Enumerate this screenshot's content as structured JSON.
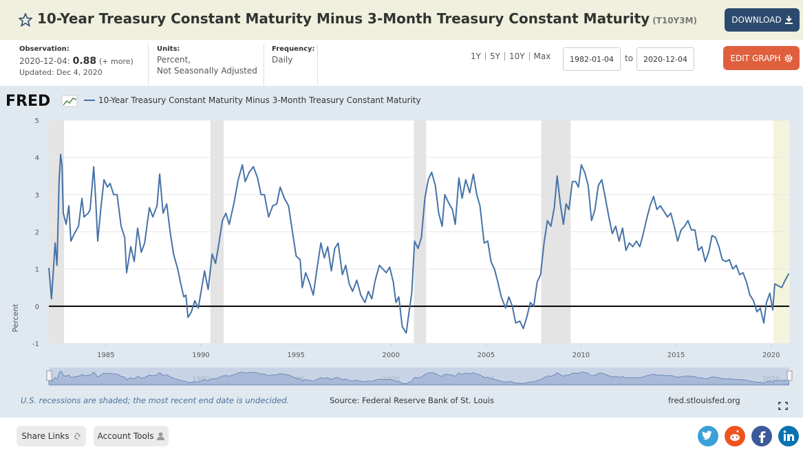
{
  "header": {
    "title": "10-Year Treasury Constant Maturity Minus 3-Month Treasury Constant Maturity",
    "series_id": "(T10Y3M)",
    "download": "DOWNLOAD"
  },
  "info": {
    "observation_label": "Observation:",
    "observation_date": "2020-12-04:",
    "observation_value": "0.88",
    "more": "(+ more)",
    "updated": "Updated: Dec 4, 2020",
    "units_label": "Units:",
    "units": [
      "Percent,",
      "Not Seasonally Adjusted"
    ],
    "frequency_label": "Frequency:",
    "frequency": "Daily"
  },
  "controls": {
    "ranges": [
      "1Y",
      "5Y",
      "10Y",
      "Max"
    ],
    "start": "1982-01-04",
    "to": "to",
    "end": "2020-12-04",
    "edit": "EDIT GRAPH"
  },
  "chart_data": {
    "type": "line",
    "logo": "FRED",
    "ylabel": "Percent",
    "x": [
      1982.0,
      1982.14,
      1982.33,
      1982.43,
      1982.54,
      1982.62,
      1982.69,
      1982.76,
      1982.91,
      1983.05,
      1983.16,
      1983.34,
      1983.56,
      1983.74,
      1983.85,
      1984.07,
      1984.17,
      1984.36,
      1984.46,
      1984.57,
      1984.75,
      1984.9,
      1985.08,
      1985.22,
      1985.41,
      1985.59,
      1985.8,
      1985.99,
      1986.09,
      1986.31,
      1986.49,
      1986.67,
      1986.86,
      1987.04,
      1987.29,
      1987.47,
      1987.69,
      1987.83,
      1988.01,
      1988.2,
      1988.38,
      1988.56,
      1988.78,
      1988.92,
      1989.1,
      1989.21,
      1989.32,
      1989.5,
      1989.68,
      1989.86,
      1990.01,
      1990.19,
      1990.38,
      1990.59,
      1990.77,
      1990.95,
      1991.13,
      1991.31,
      1991.49,
      1991.75,
      1991.96,
      1992.18,
      1992.33,
      1992.54,
      1992.76,
      1992.98,
      1993.16,
      1993.34,
      1993.56,
      1993.78,
      1993.99,
      1994.17,
      1994.39,
      1994.61,
      1994.83,
      1995.01,
      1995.22,
      1995.33,
      1995.51,
      1995.7,
      1995.91,
      1996.09,
      1996.31,
      1996.49,
      1996.67,
      1996.86,
      1997.04,
      1997.22,
      1997.44,
      1997.62,
      1997.8,
      1997.98,
      1998.2,
      1998.41,
      1998.63,
      1998.81,
      1998.99,
      1999.17,
      1999.39,
      1999.57,
      1999.75,
      1999.93,
      2000.12,
      2000.26,
      2000.41,
      2000.59,
      2000.8,
      2000.95,
      2001.09,
      2001.24,
      2001.42,
      2001.6,
      2001.78,
      2001.96,
      2002.14,
      2002.33,
      2002.51,
      2002.69,
      2002.83,
      2003.01,
      2003.23,
      2003.38,
      2003.57,
      2003.74,
      2003.93,
      2004.14,
      2004.33,
      2004.51,
      2004.68,
      2004.9,
      2005.09,
      2005.26,
      2005.44,
      2005.62,
      2005.8,
      2006.03,
      2006.2,
      2006.38,
      2006.56,
      2006.78,
      2006.96,
      2007.14,
      2007.33,
      2007.51,
      2007.69,
      2007.87,
      2008.05,
      2008.23,
      2008.41,
      2008.59,
      2008.74,
      2008.92,
      2009.07,
      2009.21,
      2009.36,
      2009.54,
      2009.72,
      2009.86,
      2010.01,
      2010.19,
      2010.37,
      2010.55,
      2010.73,
      2010.91,
      2011.09,
      2011.28,
      2011.46,
      2011.64,
      2011.82,
      2012.0,
      2012.18,
      2012.36,
      2012.54,
      2012.72,
      2012.91,
      2013.09,
      2013.27,
      2013.45,
      2013.63,
      2013.81,
      2013.99,
      2014.17,
      2014.36,
      2014.54,
      2014.72,
      2014.9,
      2015.08,
      2015.26,
      2015.44,
      2015.62,
      2015.8,
      2015.99,
      2016.17,
      2016.35,
      2016.53,
      2016.71,
      2016.89,
      2017.07,
      2017.25,
      2017.43,
      2017.62,
      2017.8,
      2017.98,
      2018.16,
      2018.34,
      2018.52,
      2018.7,
      2018.88,
      2019.07,
      2019.25,
      2019.43,
      2019.61,
      2019.75,
      2019.93,
      2020.08,
      2020.19,
      2020.37,
      2020.55,
      2020.74,
      2020.93
    ],
    "series": [
      {
        "name": "10-Year Treasury Constant Maturity Minus 3-Month Treasury Constant Maturity",
        "color": "#4572a7",
        "values": [
          1.03,
          0.2,
          1.7,
          1.1,
          3.4,
          4.08,
          3.8,
          2.5,
          2.2,
          2.7,
          1.75,
          1.95,
          2.15,
          2.9,
          2.4,
          2.5,
          2.6,
          3.75,
          2.9,
          1.75,
          2.7,
          3.4,
          3.2,
          3.3,
          3.0,
          3.0,
          2.15,
          1.85,
          0.9,
          1.6,
          1.2,
          2.1,
          1.45,
          1.7,
          2.65,
          2.4,
          2.7,
          3.55,
          2.5,
          2.75,
          2.0,
          1.4,
          1.0,
          0.65,
          0.25,
          0.3,
          -0.3,
          -0.15,
          0.15,
          -0.05,
          0.4,
          0.95,
          0.45,
          1.4,
          1.15,
          1.7,
          2.3,
          2.5,
          2.2,
          2.8,
          3.4,
          3.8,
          3.35,
          3.6,
          3.75,
          3.45,
          3.0,
          3.0,
          2.4,
          2.7,
          2.75,
          3.2,
          2.9,
          2.7,
          1.95,
          1.35,
          1.25,
          0.5,
          0.9,
          0.65,
          0.3,
          0.95,
          1.7,
          1.3,
          1.6,
          0.95,
          1.55,
          1.7,
          0.85,
          1.1,
          0.6,
          0.4,
          0.7,
          0.3,
          0.1,
          0.4,
          0.2,
          0.7,
          1.1,
          1.0,
          0.9,
          1.05,
          0.65,
          0.1,
          0.25,
          -0.55,
          -0.72,
          -0.15,
          0.35,
          1.75,
          1.55,
          1.85,
          2.9,
          3.4,
          3.6,
          3.25,
          2.5,
          2.15,
          3.0,
          2.8,
          2.6,
          2.2,
          3.45,
          2.9,
          3.4,
          3.05,
          3.55,
          3.0,
          2.7,
          1.7,
          1.75,
          1.2,
          1.0,
          0.65,
          0.25,
          -0.05,
          0.25,
          0.0,
          -0.45,
          -0.4,
          -0.6,
          -0.3,
          0.1,
          0.0,
          0.65,
          0.85,
          1.7,
          2.3,
          2.15,
          2.65,
          3.5,
          2.7,
          2.2,
          2.75,
          2.6,
          3.35,
          3.35,
          3.2,
          3.8,
          3.6,
          3.25,
          2.3,
          2.6,
          3.25,
          3.4,
          2.9,
          2.4,
          1.95,
          2.15,
          1.75,
          2.1,
          1.5,
          1.7,
          1.6,
          1.75,
          1.6,
          1.95,
          2.35,
          2.7,
          2.95,
          2.6,
          2.7,
          2.55,
          2.4,
          2.5,
          2.15,
          1.75,
          2.05,
          2.15,
          2.3,
          2.05,
          2.05,
          1.5,
          1.6,
          1.2,
          1.45,
          1.9,
          1.85,
          1.6,
          1.25,
          1.2,
          1.25,
          1.0,
          1.1,
          0.85,
          0.9,
          0.65,
          0.3,
          0.15,
          -0.15,
          -0.05,
          -0.45,
          0.1,
          0.35,
          -0.1,
          0.6,
          0.55,
          0.5,
          0.7,
          0.88
        ]
      }
    ],
    "xlim": [
      1982.0,
      2020.95
    ],
    "xticks": [
      1985,
      1990,
      1995,
      2000,
      2005,
      2010,
      2015,
      2020
    ],
    "ylim": [
      -1,
      5
    ],
    "yticks": [
      -1,
      0,
      1,
      2,
      3,
      4,
      5
    ],
    "grid": true,
    "zero_line": true,
    "recessions": [
      [
        1982.0,
        1982.8
      ],
      [
        1990.5,
        1991.2
      ],
      [
        2001.2,
        2001.85
      ],
      [
        2007.9,
        2009.45
      ]
    ],
    "recession_color": "#e4e4e4",
    "undecided_recession": [
      2020.12,
      2020.93
    ],
    "undecided_color": "#f4f4dc",
    "note": "U.S. recessions are shaded; the most recent end date is undecided.",
    "source": "Source: Federal Reserve Bank of St. Louis",
    "url": "fred.stlouisfed.org"
  },
  "footer": {
    "share": "Share Links",
    "account": "Account Tools"
  }
}
